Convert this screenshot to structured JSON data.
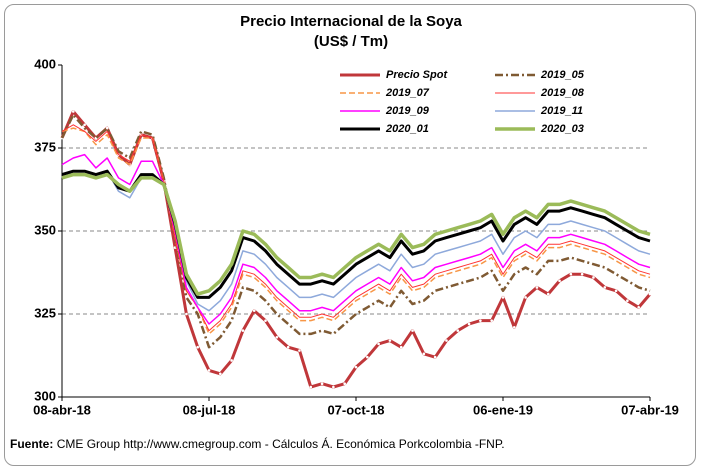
{
  "chart_data": {
    "type": "line",
    "title": "Precio Internacional de la Soya",
    "subtitle": "(US$ / Tm)",
    "source_label": "Fuente:",
    "source": "CME Group http://www.cmegroup.com - Cálculos Á. Económica Porkcolombia -FNP.",
    "categories": [
      "08-abr-18",
      null,
      null,
      null,
      null,
      null,
      null,
      null,
      null,
      null,
      null,
      null,
      null,
      "08-jul-18",
      null,
      null,
      null,
      null,
      null,
      null,
      null,
      null,
      null,
      null,
      null,
      null,
      "07-oct-18",
      null,
      null,
      null,
      null,
      null,
      null,
      null,
      null,
      null,
      null,
      null,
      null,
      "06-ene-19",
      null,
      null,
      null,
      null,
      null,
      null,
      null,
      null,
      null,
      null,
      null,
      null,
      "07-abr-19"
    ],
    "ylim": [
      300,
      400
    ],
    "yticks": [
      300,
      325,
      350,
      375,
      400
    ],
    "grid": true,
    "series": [
      {
        "name": "Precio Spot",
        "color": "#c0373a",
        "line_width": 3,
        "dash": "solid",
        "values": [
          378,
          386,
          382,
          378,
          381,
          373,
          370,
          379,
          378,
          365,
          345,
          325,
          315,
          308,
          307,
          311,
          320,
          326,
          323,
          318,
          315,
          314,
          303,
          304,
          303,
          304,
          309,
          312,
          316,
          317,
          315,
          320,
          313,
          312,
          317,
          320,
          322,
          323,
          323,
          330,
          321,
          330,
          333,
          331,
          335,
          337,
          337,
          336,
          333,
          332,
          329,
          327,
          331
        ]
      },
      {
        "name": "2019_05",
        "color": "#7f5a33",
        "line_width": 2.5,
        "dash": "dashdot",
        "values": [
          378,
          385,
          381,
          378,
          381,
          374,
          372,
          380,
          379,
          366,
          348,
          330,
          325,
          315,
          318,
          323,
          333,
          332,
          329,
          325,
          322,
          319,
          319,
          320,
          319,
          322,
          325,
          327,
          329,
          327,
          332,
          328,
          329,
          332,
          333,
          334,
          335,
          336,
          338,
          332,
          337,
          339,
          337,
          341,
          341,
          342,
          341,
          340,
          339,
          337,
          335,
          333,
          332
        ]
      },
      {
        "name": "2019_07",
        "color": "#f79646",
        "line_width": 1.5,
        "dash": "dash",
        "values": [
          380,
          381,
          380,
          376,
          379,
          372,
          370,
          378,
          378,
          365,
          348,
          332,
          327,
          319,
          322,
          327,
          337,
          336,
          333,
          329,
          326,
          323,
          323,
          324,
          323,
          326,
          329,
          331,
          333,
          331,
          336,
          332,
          333,
          336,
          337,
          338,
          339,
          340,
          342,
          336,
          341,
          343,
          341,
          345,
          345,
          346,
          345,
          344,
          343,
          341,
          339,
          337,
          336
        ]
      },
      {
        "name": "2019_08",
        "color": "#ff3333",
        "line_width": 1,
        "dash": "solid",
        "values": [
          380,
          382,
          380,
          377,
          380,
          373,
          371,
          379,
          378,
          365,
          348,
          332,
          327,
          320,
          323,
          328,
          338,
          337,
          334,
          330,
          327,
          324,
          324,
          325,
          324,
          327,
          330,
          332,
          334,
          332,
          337,
          333,
          334,
          337,
          338,
          339,
          340,
          341,
          343,
          337,
          342,
          344,
          342,
          346,
          346,
          347,
          346,
          345,
          344,
          342,
          340,
          338,
          337
        ]
      },
      {
        "name": "2019_09",
        "color": "#ff00ff",
        "line_width": 1.5,
        "dash": "solid",
        "values": [
          370,
          372,
          373,
          369,
          372,
          366,
          364,
          371,
          371,
          364,
          350,
          333,
          327,
          322,
          325,
          330,
          340,
          339,
          336,
          332,
          329,
          326,
          326,
          327,
          326,
          329,
          332,
          334,
          336,
          334,
          339,
          335,
          336,
          339,
          340,
          341,
          342,
          343,
          345,
          339,
          344,
          346,
          344,
          348,
          348,
          349,
          348,
          347,
          346,
          344,
          342,
          340,
          339
        ]
      },
      {
        "name": "2019_11",
        "color": "#8ea9db",
        "line_width": 1.5,
        "dash": "solid",
        "values": [
          366,
          368,
          368,
          366,
          368,
          362,
          360,
          366,
          367,
          364,
          352,
          335,
          328,
          326,
          329,
          334,
          344,
          343,
          340,
          336,
          333,
          330,
          330,
          331,
          330,
          333,
          336,
          338,
          340,
          338,
          343,
          339,
          340,
          343,
          344,
          345,
          346,
          347,
          349,
          343,
          348,
          350,
          348,
          352,
          352,
          353,
          352,
          351,
          350,
          348,
          346,
          344,
          343
        ]
      },
      {
        "name": "2020_01",
        "color": "#000000",
        "line_width": 3,
        "dash": "solid",
        "values": [
          367,
          368,
          368,
          367,
          368,
          363,
          362,
          367,
          367,
          364,
          352,
          336,
          330,
          330,
          333,
          338,
          348,
          347,
          344,
          340,
          337,
          334,
          334,
          335,
          334,
          337,
          340,
          342,
          344,
          342,
          347,
          343,
          344,
          347,
          348,
          349,
          350,
          351,
          353,
          347,
          352,
          354,
          352,
          356,
          356,
          357,
          356,
          355,
          354,
          352,
          350,
          348,
          347
        ]
      },
      {
        "name": "2020_03",
        "color": "#9bbb59",
        "line_width": 3.5,
        "dash": "solid",
        "values": [
          366,
          367,
          367,
          366,
          367,
          364,
          362,
          366,
          366,
          364,
          353,
          337,
          331,
          332,
          335,
          340,
          350,
          349,
          346,
          342,
          339,
          336,
          336,
          337,
          336,
          339,
          342,
          344,
          346,
          344,
          349,
          345,
          346,
          349,
          350,
          351,
          352,
          353,
          355,
          349,
          354,
          356,
          354,
          358,
          358,
          359,
          358,
          357,
          356,
          354,
          352,
          350,
          349
        ]
      }
    ]
  }
}
